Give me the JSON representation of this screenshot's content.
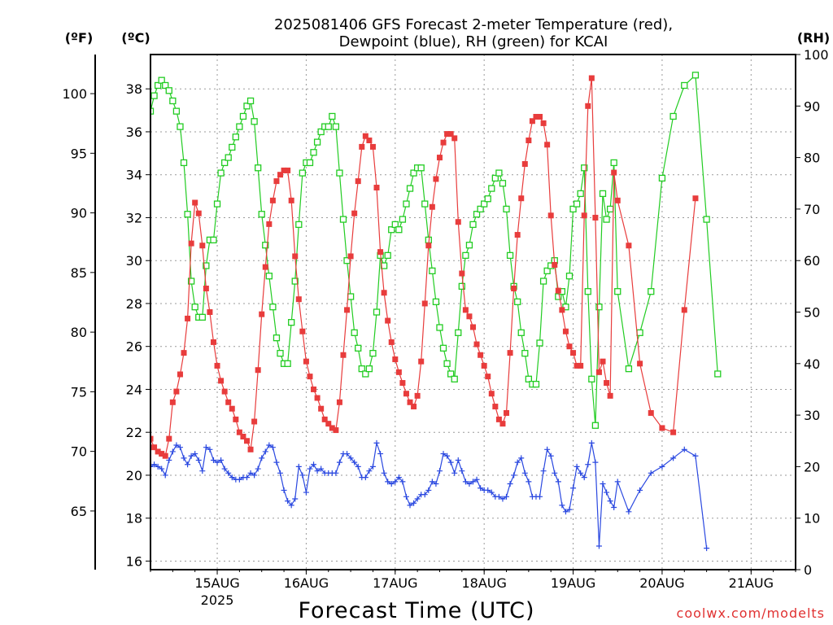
{
  "chart_data": {
    "type": "line",
    "title_line1": "2025081406 GFS Forecast 2-meter Temperature (red),",
    "title_line2": "Dewpoint (blue), RH (green) for KCAI",
    "xlabel": "Forecast Time (UTC)",
    "credit": "coolwx.com/modelts",
    "unit_f": "(ºF)",
    "unit_c": "(ºC)",
    "unit_rh": "(RH)",
    "x_start_hour": 6,
    "x_end_hour": 180,
    "x_tick_days": [
      {
        "label": "15AUG",
        "sub": "2025",
        "hour": 24
      },
      {
        "label": "16AUG",
        "sub": "",
        "hour": 48
      },
      {
        "label": "17AUG",
        "sub": "",
        "hour": 72
      },
      {
        "label": "18AUG",
        "sub": "",
        "hour": 96
      },
      {
        "label": "19AUG",
        "sub": "",
        "hour": 120
      },
      {
        "label": "20AUG",
        "sub": "",
        "hour": 144
      },
      {
        "label": "21AUG",
        "sub": "",
        "hour": 168
      }
    ],
    "ylim_c": [
      15.6,
      39.6
    ],
    "yticks_c": [
      "16",
      "18",
      "20",
      "22",
      "24",
      "26",
      "28",
      "30",
      "32",
      "34",
      "36",
      "38"
    ],
    "yticks_f": [
      "65",
      "70",
      "75",
      "80",
      "85",
      "90",
      "95",
      "100"
    ],
    "ylim_rh": [
      0,
      100
    ],
    "yticks_rh": [
      "0",
      "10",
      "20",
      "30",
      "40",
      "50",
      "60",
      "70",
      "80",
      "90",
      "100"
    ],
    "grid": true,
    "colors": {
      "temperature": "#e83c3c",
      "dewpoint": "#2a48e0",
      "rh": "#22cc22"
    },
    "hours": [
      6,
      7,
      8,
      9,
      10,
      11,
      12,
      13,
      14,
      15,
      16,
      17,
      18,
      19,
      20,
      21,
      22,
      23,
      24,
      25,
      26,
      27,
      28,
      29,
      30,
      31,
      32,
      33,
      34,
      35,
      36,
      37,
      38,
      39,
      40,
      41,
      42,
      43,
      44,
      45,
      46,
      47,
      48,
      49,
      50,
      51,
      52,
      53,
      54,
      55,
      56,
      57,
      58,
      59,
      60,
      61,
      62,
      63,
      64,
      65,
      66,
      67,
      68,
      69,
      70,
      71,
      72,
      73,
      74,
      75,
      76,
      77,
      78,
      79,
      80,
      81,
      82,
      83,
      84,
      85,
      86,
      87,
      88,
      89,
      90,
      91,
      92,
      93,
      94,
      95,
      96,
      97,
      98,
      99,
      100,
      101,
      102,
      103,
      104,
      105,
      106,
      107,
      108,
      109,
      110,
      111,
      112,
      113,
      114,
      115,
      116,
      117,
      118,
      119,
      120,
      121,
      122,
      123,
      124,
      125,
      126,
      127,
      128,
      129,
      130,
      131,
      132,
      135,
      138,
      141,
      144,
      147,
      150,
      153,
      156,
      159,
      162,
      165,
      168,
      171,
      174,
      177,
      180
    ],
    "series": [
      {
        "name": "Temperature",
        "unit": "C",
        "values": [
          21.7,
          21.3,
          21.1,
          21.0,
          20.9,
          21.7,
          23.4,
          23.9,
          24.7,
          25.7,
          27.3,
          30.8,
          32.7,
          32.2,
          30.7,
          28.7,
          27.6,
          26.2,
          25.1,
          24.4,
          23.9,
          23.4,
          23.1,
          22.6,
          22.0,
          21.8,
          21.6,
          21.2,
          22.5,
          24.9,
          27.5,
          29.7,
          31.7,
          32.8,
          33.7,
          34.0,
          34.2,
          34.2,
          32.8,
          30.2,
          28.2,
          26.7,
          25.3,
          24.6,
          24.0,
          23.6,
          23.1,
          22.6,
          22.4,
          22.2,
          22.1,
          23.4,
          25.6,
          27.7,
          30.2,
          32.2,
          33.7,
          35.3,
          35.8,
          35.6,
          35.3,
          33.4,
          30.4,
          28.5,
          27.2,
          26.2,
          25.4,
          24.8,
          24.3,
          23.8,
          23.4,
          23.2,
          23.7,
          25.3,
          28.0,
          30.7,
          32.5,
          33.8,
          34.8,
          35.5,
          35.9,
          35.9,
          35.7,
          31.8,
          29.4,
          27.7,
          27.4,
          26.9,
          26.1,
          25.6,
          25.1,
          24.6,
          23.8,
          23.2,
          22.6,
          22.4,
          22.9,
          25.7,
          28.7,
          31.2,
          32.9,
          34.5,
          35.6,
          36.5,
          36.7,
          36.7,
          36.4,
          35.4,
          32.1,
          29.8,
          28.6,
          27.7,
          26.7,
          26.0,
          25.7,
          25.1,
          25.1,
          32.1,
          37.2,
          38.5,
          32.0,
          24.8,
          25.3,
          24.3,
          23.7,
          34.1,
          32.8,
          30.7,
          25.2,
          22.9,
          22.2,
          22.0,
          27.7,
          32.9
        ]
      },
      {
        "name": "Dewpoint",
        "unit": "C",
        "values": [
          20.4,
          20.5,
          20.4,
          20.3,
          20.0,
          20.7,
          21.1,
          21.4,
          21.3,
          20.8,
          20.5,
          20.9,
          21.0,
          20.7,
          20.2,
          21.3,
          21.2,
          20.7,
          20.6,
          20.7,
          20.3,
          20.1,
          19.9,
          19.8,
          19.8,
          19.9,
          19.9,
          20.1,
          20.0,
          20.3,
          20.8,
          21.1,
          21.4,
          21.3,
          20.6,
          20.1,
          19.3,
          18.8,
          18.6,
          18.9,
          20.4,
          20.0,
          19.2,
          20.3,
          20.5,
          20.2,
          20.3,
          20.1,
          20.1,
          20.1,
          20.1,
          20.6,
          21.0,
          21.0,
          20.8,
          20.6,
          20.4,
          19.9,
          19.9,
          20.2,
          20.4,
          21.5,
          21.0,
          20.1,
          19.7,
          19.6,
          19.7,
          19.9,
          19.7,
          19.0,
          18.6,
          18.7,
          18.9,
          19.1,
          19.1,
          19.3,
          19.7,
          19.6,
          20.2,
          21.0,
          20.9,
          20.6,
          20.1,
          20.7,
          20.2,
          19.7,
          19.6,
          19.7,
          19.8,
          19.4,
          19.3,
          19.3,
          19.2,
          19.0,
          19.0,
          18.9,
          19.0,
          19.6,
          20.0,
          20.6,
          20.8,
          20.1,
          19.7,
          19.0,
          19.0,
          19.0,
          20.2,
          21.2,
          20.9,
          20.1,
          19.7,
          18.6,
          18.3,
          18.4,
          19.4,
          20.4,
          20.1,
          19.9,
          20.5,
          21.5,
          20.6,
          16.7,
          19.6,
          19.2,
          18.8,
          18.5,
          19.7,
          18.3,
          19.3,
          20.1,
          20.4,
          20.8,
          21.2,
          20.9,
          16.6
        ]
      },
      {
        "name": "RH",
        "unit": "%",
        "values": [
          89,
          92,
          94,
          95,
          94,
          93,
          91,
          89,
          86,
          79,
          69,
          56,
          51,
          49,
          49,
          59,
          64,
          64,
          71,
          77,
          79,
          80,
          82,
          84,
          86,
          88,
          90,
          91,
          87,
          78,
          69,
          63,
          57,
          51,
          45,
          42,
          40,
          40,
          48,
          56,
          67,
          77,
          79,
          79,
          81,
          83,
          85,
          86,
          86,
          88,
          86,
          77,
          68,
          60,
          53,
          46,
          43,
          39,
          38,
          39,
          42,
          50,
          61,
          59,
          61,
          66,
          67,
          66,
          68,
          71,
          74,
          77,
          78,
          78,
          71,
          64,
          58,
          52,
          47,
          43,
          40,
          38,
          37,
          46,
          55,
          61,
          63,
          67,
          69,
          70,
          71,
          72,
          74,
          76,
          77,
          75,
          70,
          61,
          55,
          52,
          46,
          42,
          37,
          36,
          36,
          44,
          56,
          58,
          59,
          60,
          53,
          54,
          51,
          57,
          70,
          71,
          73,
          78,
          54,
          37,
          28,
          51,
          73,
          68,
          70,
          79,
          54,
          39,
          46,
          54,
          76,
          88,
          94,
          96,
          68,
          38
        ]
      }
    ]
  }
}
